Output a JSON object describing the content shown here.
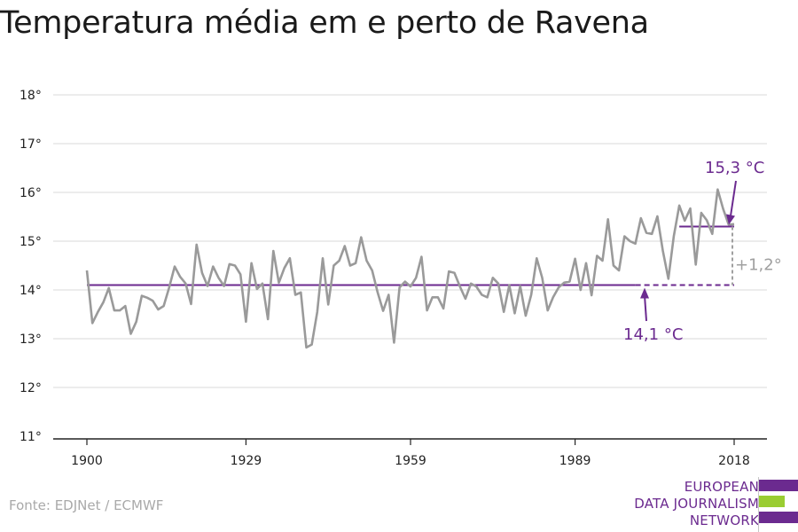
{
  "title": "Temperatura média em e perto de Ravena",
  "source": "Fonte: EDJNet / ECMWF",
  "logo": {
    "lines": [
      "EUROPEAN",
      "DATA JOURNALISM",
      "NETWORK"
    ],
    "colors": {
      "purple": "#6b2a8f",
      "green": "#9acd32"
    }
  },
  "colors": {
    "line": "#9a9a9a",
    "accent": "#6b2a8f",
    "grid": "#d9d9d9"
  },
  "chart_data": {
    "type": "line",
    "title": "Temperatura média em e perto de Ravena",
    "xlim": [
      1900,
      2018
    ],
    "ylim": [
      11,
      18
    ],
    "yticks": [
      11,
      12,
      13,
      14,
      15,
      16,
      17,
      18
    ],
    "ytick_labels": [
      "11°",
      "12°",
      "13°",
      "14°",
      "15°",
      "16°",
      "17°",
      "18°"
    ],
    "xticks": [
      1900,
      1929,
      1959,
      1989,
      2018
    ],
    "xtick_labels": [
      "1900",
      "1929",
      "1959",
      "1989",
      "2018"
    ],
    "grid": true,
    "series": [
      {
        "x": [
          1900,
          1901,
          1902,
          1903,
          1904,
          1905,
          1906,
          1907,
          1908,
          1909,
          1910,
          1911,
          1912,
          1913,
          1914,
          1915,
          1916,
          1917,
          1918,
          1919,
          1920,
          1921,
          1922,
          1923,
          1924,
          1925,
          1926,
          1927,
          1928,
          1929,
          1930,
          1931,
          1932,
          1933,
          1934,
          1935,
          1936,
          1937,
          1938,
          1939,
          1940,
          1941,
          1942,
          1943,
          1944,
          1945,
          1946,
          1947,
          1948,
          1949,
          1950,
          1951,
          1952,
          1953,
          1954,
          1955,
          1956,
          1957,
          1958,
          1959,
          1960,
          1961,
          1962,
          1963,
          1964,
          1965,
          1966,
          1967,
          1968,
          1969,
          1970,
          1971,
          1972,
          1973,
          1974,
          1975,
          1976,
          1977,
          1978,
          1979,
          1980,
          1981,
          1982,
          1983,
          1984,
          1985,
          1986,
          1987,
          1988,
          1989,
          1990,
          1991,
          1992,
          1993,
          1994,
          1995,
          1996,
          1997,
          1998,
          1999,
          2000,
          2001,
          2002,
          2003,
          2004,
          2005,
          2006,
          2007,
          2008,
          2009,
          2010,
          2011,
          2012,
          2013,
          2014,
          2015,
          2016,
          2017,
          2018
        ],
        "values": [
          14.4,
          13.32,
          13.55,
          13.75,
          14.04,
          13.58,
          13.58,
          13.67,
          13.1,
          13.35,
          13.88,
          13.84,
          13.78,
          13.6,
          13.67,
          14.05,
          14.48,
          14.27,
          14.13,
          13.71,
          14.93,
          14.35,
          14.08,
          14.48,
          14.25,
          14.08,
          14.53,
          14.5,
          14.32,
          13.35,
          14.55,
          14.02,
          14.13,
          13.4,
          14.8,
          14.15,
          14.45,
          14.65,
          13.9,
          13.95,
          12.82,
          12.88,
          13.55,
          14.65,
          13.7,
          14.5,
          14.6,
          14.9,
          14.5,
          14.55,
          15.08,
          14.6,
          14.4,
          13.95,
          13.57,
          13.9,
          12.92,
          14.05,
          14.17,
          14.07,
          14.25,
          14.68,
          13.58,
          13.85,
          13.85,
          13.62,
          14.38,
          14.35,
          14.07,
          13.82,
          14.13,
          14.07,
          13.9,
          13.85,
          14.25,
          14.13,
          13.55,
          14.1,
          13.52,
          14.08,
          13.47,
          13.9,
          14.65,
          14.25,
          13.58,
          13.85,
          14.05,
          14.15,
          14.17,
          14.64,
          14.0,
          14.55,
          13.89,
          14.7,
          14.6,
          15.45,
          14.5,
          14.4,
          15.1,
          15.0,
          14.95,
          15.47,
          15.17,
          15.15,
          15.51,
          14.8,
          14.23,
          15.1,
          15.73,
          15.42,
          15.67,
          14.52,
          15.58,
          15.43,
          15.15,
          16.06,
          15.66,
          15.34,
          15.35
        ]
      }
    ],
    "averages": [
      {
        "from": 1900,
        "to": 2000,
        "value": 14.1,
        "style": "solid"
      },
      {
        "from": 2000,
        "to": 2018,
        "value": 14.1,
        "style": "dashed"
      },
      {
        "from": 2008,
        "to": 2018,
        "value": 15.3,
        "style": "solid"
      }
    ],
    "annotations": {
      "recent_avg": {
        "label": "15,3 °C",
        "x": 2018,
        "y": 15.3
      },
      "baseline_avg": {
        "label": "14,1 °C",
        "x": 2002,
        "y": 14.1
      },
      "delta": {
        "label": "+1,2°",
        "x": 2018
      }
    }
  }
}
